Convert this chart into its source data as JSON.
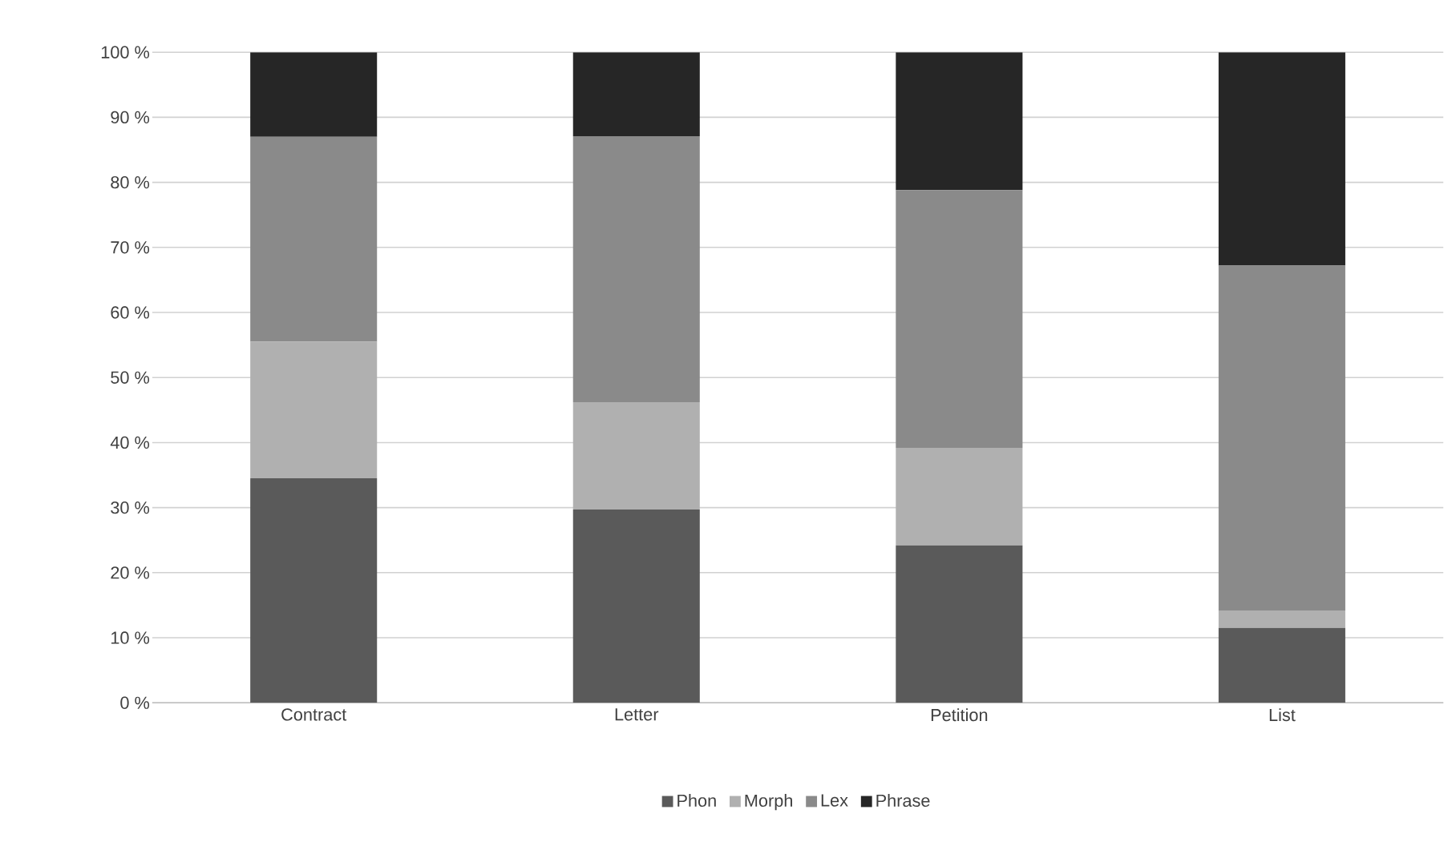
{
  "chart_data": {
    "type": "bar",
    "stacked": true,
    "categories": [
      "Contract",
      "Letter",
      "Petition",
      "List"
    ],
    "series": [
      {
        "name": "Phon",
        "color": "#5a5a5a",
        "values": [
          34.5,
          29.7,
          24.2,
          11.5
        ]
      },
      {
        "name": "Morph",
        "color": "#b0b0b0",
        "values": [
          21,
          16.5,
          15,
          2.7
        ]
      },
      {
        "name": "Lex",
        "color": "#8a8a8a",
        "values": [
          31.5,
          40.9,
          39.6,
          53
        ]
      },
      {
        "name": "Phrase",
        "color": "#262626",
        "values": [
          13,
          12.9,
          21.2,
          32.8
        ]
      }
    ],
    "ylim": [
      0,
      100
    ],
    "yticks": [
      {
        "value": 0,
        "label": "0 %"
      },
      {
        "value": 10,
        "label": "10 %"
      },
      {
        "value": 20,
        "label": "20 %"
      },
      {
        "value": 30,
        "label": "30 %"
      },
      {
        "value": 40,
        "label": "40 %"
      },
      {
        "value": 50,
        "label": "50 %"
      },
      {
        "value": 60,
        "label": "60 %"
      },
      {
        "value": 70,
        "label": "70 %"
      },
      {
        "value": 80,
        "label": "80 %"
      },
      {
        "value": 90,
        "label": "90 %"
      },
      {
        "value": 100,
        "label": "100 %"
      }
    ],
    "grid": "y",
    "legend": "bottom"
  }
}
